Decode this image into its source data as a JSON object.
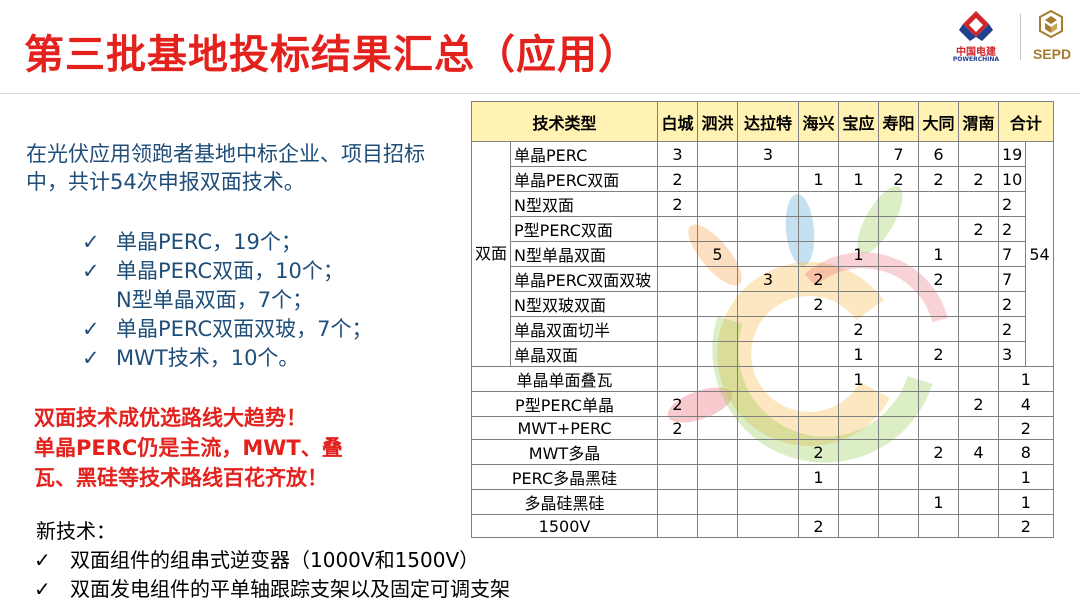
{
  "title": "第三批基地投标结果汇总（应用）",
  "logos": {
    "powerchina_cn": "中国电建",
    "powerchina_en": "POWERCHINA",
    "sepd": "SEPD"
  },
  "intro_text": "在光伏应用领跑者基地中标企业、项目招标中，共计54次申报双面技术。",
  "check_mark": "✓",
  "checklist": [
    "单晶PERC，19个；",
    "单晶PERC双面，10个；",
    "N型单晶双面，7个；",
    "单晶PERC双面双玻，7个；",
    "MWT技术，10个。"
  ],
  "highlight_lines": [
    "双面技术成优选路线大趋势！",
    "单晶PERC仍是主流，MWT、叠",
    "瓦、黑硅等技术路线百花齐放！"
  ],
  "new_tech": {
    "heading": "新技术：",
    "items": [
      "双面组件的组串式逆变器（1000V和1500V）",
      "双面发电组件的平单轴跟踪支架以及固定可调支架"
    ]
  },
  "table": {
    "headers": [
      "技术类型",
      "白城",
      "泗洪",
      "达拉特",
      "海兴",
      "宝应",
      "寿阳",
      "大同",
      "渭南",
      "合计"
    ],
    "group_label": "双面",
    "group_total": "54",
    "group_rows": [
      {
        "type": "单晶PERC",
        "cells": [
          "3",
          "",
          "3",
          "",
          "",
          "7",
          "6",
          ""
        ],
        "total": "19"
      },
      {
        "type": "单晶PERC双面",
        "cells": [
          "2",
          "",
          "",
          "1",
          "1",
          "2",
          "2",
          "2"
        ],
        "total": "10"
      },
      {
        "type": "N型双面",
        "cells": [
          "2",
          "",
          "",
          "",
          "",
          "",
          "",
          ""
        ],
        "total": "2"
      },
      {
        "type": "P型PERC双面",
        "cells": [
          "",
          "",
          "",
          "",
          "",
          "",
          "",
          "2"
        ],
        "total": "2"
      },
      {
        "type": "N型单晶双面",
        "cells": [
          "",
          "5",
          "",
          "",
          "1",
          "",
          "1",
          ""
        ],
        "total": "7"
      },
      {
        "type": "单晶PERC双面双玻",
        "cells": [
          "",
          "",
          "3",
          "2",
          "",
          "",
          "2",
          ""
        ],
        "total": "7"
      },
      {
        "type": "N型双玻双面",
        "cells": [
          "",
          "",
          "",
          "2",
          "",
          "",
          "",
          ""
        ],
        "total": "2"
      },
      {
        "type": "单晶双面切半",
        "cells": [
          "",
          "",
          "",
          "",
          "2",
          "",
          "",
          ""
        ],
        "total": "2"
      },
      {
        "type": "单晶双面",
        "cells": [
          "",
          "",
          "",
          "",
          "1",
          "",
          "2",
          ""
        ],
        "total": "3"
      }
    ],
    "other_rows": [
      {
        "type": "单晶单面叠瓦",
        "cells": [
          "",
          "",
          "",
          "",
          "1",
          "",
          "",
          ""
        ],
        "total": "1"
      },
      {
        "type": "P型PERC单晶",
        "cells": [
          "2",
          "",
          "",
          "",
          "",
          "",
          "",
          "2"
        ],
        "total": "4"
      },
      {
        "type": "MWT+PERC",
        "cells": [
          "2",
          "",
          "",
          "",
          "",
          "",
          "",
          ""
        ],
        "total": "2"
      },
      {
        "type": "MWT多晶",
        "cells": [
          "",
          "",
          "",
          "2",
          "",
          "",
          "2",
          "4"
        ],
        "total": "8"
      },
      {
        "type": "PERC多晶黑硅",
        "cells": [
          "",
          "",
          "",
          "1",
          "",
          "",
          "",
          ""
        ],
        "total": "1"
      },
      {
        "type": "多晶硅黑硅",
        "cells": [
          "",
          "",
          "",
          "",
          "",
          "",
          "1",
          ""
        ],
        "total": "1"
      },
      {
        "type": "1500V",
        "cells": [
          "",
          "",
          "",
          "2",
          "",
          "",
          "",
          ""
        ],
        "total": "2"
      }
    ]
  },
  "colors": {
    "title_red": "#e3211d",
    "body_blue": "#1f4e79",
    "header_yellow": "#fff2b3"
  }
}
